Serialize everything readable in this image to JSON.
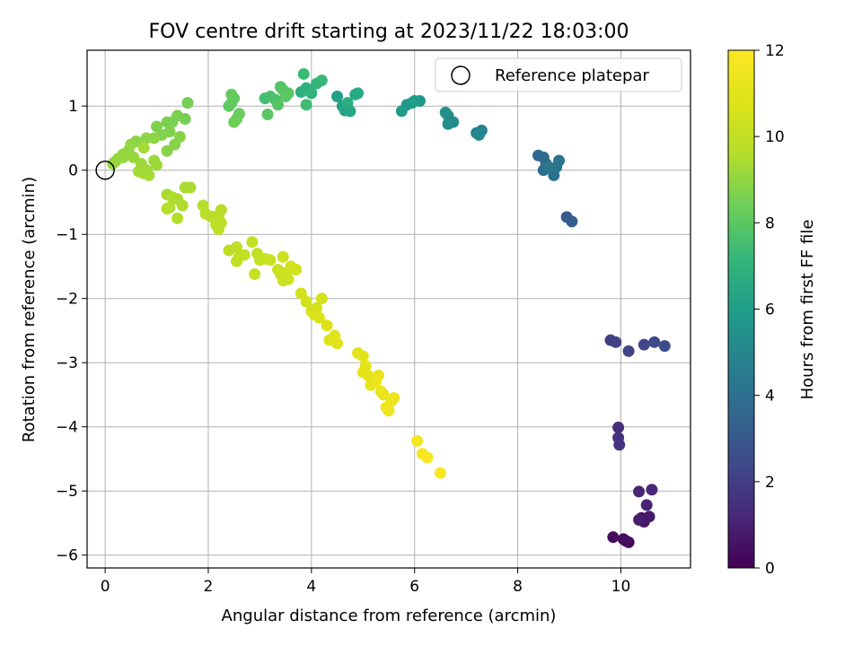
{
  "chart_data": {
    "type": "scatter",
    "title": "FOV centre drift starting at 2023/11/22 18:03:00",
    "xlabel": "Angular distance from reference (arcmin)",
    "ylabel": "Rotation from reference (arcmin)",
    "xlim": [
      -0.35,
      11.35
    ],
    "ylim": [
      -6.2,
      1.87
    ],
    "xticks": [
      0,
      2,
      4,
      6,
      8,
      10
    ],
    "yticks": [
      -6,
      -5,
      -4,
      -3,
      -2,
      -1,
      0,
      1
    ],
    "xtick_labels": [
      "0",
      "2",
      "4",
      "6",
      "8",
      "10"
    ],
    "ytick_labels": [
      "−6",
      "−5",
      "−4",
      "−3",
      "−2",
      "−1",
      "0",
      "1"
    ],
    "grid": true,
    "legend": {
      "position": "upper-right",
      "entries": [
        "Reference platepar"
      ]
    },
    "colorbar": {
      "label": "Hours from first FF file",
      "range": [
        0,
        12
      ],
      "ticks": [
        0,
        2,
        4,
        6,
        8,
        10,
        12
      ],
      "tick_labels": [
        "0",
        "2",
        "4",
        "6",
        "8",
        "10",
        "12"
      ],
      "colormap": "viridis"
    },
    "reference_point": {
      "x": 0,
      "y": 0
    },
    "points": [
      [
        10.15,
        -5.8,
        0.1
      ],
      [
        10.05,
        -5.75,
        0.2
      ],
      [
        9.85,
        -5.72,
        0.3
      ],
      [
        10.1,
        -5.78,
        0.4
      ],
      [
        10.4,
        -5.42,
        0.6
      ],
      [
        10.45,
        -5.48,
        0.7
      ],
      [
        10.55,
        -5.4,
        0.8
      ],
      [
        10.35,
        -5.45,
        0.9
      ],
      [
        10.5,
        -5.22,
        1.0
      ],
      [
        10.35,
        -5.01,
        1.1
      ],
      [
        10.6,
        -4.98,
        1.2
      ],
      [
        9.95,
        -4.01,
        1.4
      ],
      [
        9.95,
        -4.17,
        1.5
      ],
      [
        9.97,
        -4.28,
        1.6
      ],
      [
        9.8,
        -2.65,
        2.0
      ],
      [
        9.9,
        -2.68,
        2.1
      ],
      [
        10.15,
        -2.82,
        2.2
      ],
      [
        10.45,
        -2.72,
        2.3
      ],
      [
        10.65,
        -2.68,
        2.4
      ],
      [
        10.85,
        -2.74,
        2.5
      ],
      [
        8.95,
        -0.73,
        3.1
      ],
      [
        9.05,
        -0.8,
        3.2
      ],
      [
        8.4,
        0.23,
        3.6
      ],
      [
        8.5,
        0.2,
        3.7
      ],
      [
        8.55,
        0.1,
        3.8
      ],
      [
        8.5,
        0.0,
        3.9
      ],
      [
        8.7,
        -0.08,
        4.0
      ],
      [
        8.75,
        0.05,
        4.1
      ],
      [
        8.8,
        0.15,
        4.2
      ],
      [
        8.6,
        0.05,
        4.3
      ],
      [
        7.2,
        0.58,
        4.8
      ],
      [
        7.3,
        0.62,
        4.9
      ],
      [
        7.25,
        0.55,
        5.0
      ],
      [
        6.65,
        0.85,
        5.1
      ],
      [
        6.75,
        0.75,
        5.2
      ],
      [
        6.65,
        0.72,
        5.3
      ],
      [
        6.6,
        0.9,
        5.4
      ],
      [
        6.1,
        1.08,
        5.6
      ],
      [
        5.95,
        1.05,
        5.7
      ],
      [
        5.85,
        1.02,
        5.8
      ],
      [
        5.75,
        0.92,
        5.9
      ],
      [
        6.0,
        1.08,
        6.0
      ],
      [
        4.5,
        1.15,
        6.1
      ],
      [
        4.6,
        1.0,
        6.2
      ],
      [
        4.65,
        0.93,
        6.3
      ],
      [
        4.75,
        0.92,
        6.4
      ],
      [
        4.85,
        1.18,
        6.5
      ],
      [
        4.9,
        1.2,
        6.6
      ],
      [
        4.7,
        1.05,
        6.7
      ],
      [
        3.8,
        1.22,
        6.8
      ],
      [
        3.9,
        1.28,
        6.9
      ],
      [
        4.0,
        1.2,
        7.0
      ],
      [
        4.1,
        1.35,
        7.1
      ],
      [
        4.2,
        1.4,
        7.2
      ],
      [
        3.85,
        1.5,
        7.3
      ],
      [
        3.9,
        1.02,
        7.4
      ],
      [
        3.1,
        1.12,
        7.5
      ],
      [
        3.2,
        1.15,
        7.6
      ],
      [
        3.3,
        1.1,
        7.7
      ],
      [
        3.4,
        1.3,
        7.8
      ],
      [
        3.35,
        1.02,
        7.9
      ],
      [
        3.45,
        1.25,
        7.9
      ],
      [
        3.5,
        1.15,
        8.0
      ],
      [
        3.55,
        1.2,
        8.0
      ],
      [
        3.15,
        0.87,
        8.0
      ],
      [
        2.45,
        1.05,
        8.1
      ],
      [
        2.4,
        1.0,
        8.1
      ],
      [
        2.45,
        1.18,
        8.2
      ],
      [
        2.5,
        1.12,
        8.2
      ],
      [
        2.6,
        0.88,
        8.3
      ],
      [
        2.55,
        0.8,
        8.3
      ],
      [
        2.5,
        0.75,
        8.4
      ],
      [
        1.6,
        1.05,
        8.5
      ],
      [
        1.55,
        0.8,
        8.5
      ],
      [
        1.4,
        0.85,
        8.6
      ],
      [
        1.3,
        0.75,
        8.6
      ],
      [
        1.2,
        0.75,
        8.6
      ],
      [
        1.25,
        0.6,
        8.7
      ],
      [
        1.0,
        0.68,
        8.7
      ],
      [
        1.1,
        0.55,
        8.7
      ],
      [
        1.45,
        0.52,
        8.8
      ],
      [
        1.35,
        0.4,
        8.8
      ],
      [
        1.2,
        0.3,
        8.8
      ],
      [
        0.95,
        0.5,
        8.9
      ],
      [
        0.8,
        0.5,
        8.9
      ],
      [
        0.6,
        0.45,
        8.9
      ],
      [
        0.5,
        0.4,
        9.0
      ],
      [
        0.45,
        0.3,
        9.0
      ],
      [
        0.35,
        0.25,
        9.0
      ],
      [
        0.25,
        0.18,
        9.0
      ],
      [
        0.15,
        0.1,
        9.1
      ],
      [
        0.2,
        0.14,
        9.1
      ],
      [
        0.35,
        0.2,
        9.1
      ],
      [
        0.55,
        0.2,
        9.1
      ],
      [
        0.7,
        0.1,
        9.2
      ],
      [
        0.8,
        0.0,
        9.2
      ],
      [
        0.95,
        0.15,
        9.2
      ],
      [
        1.0,
        0.08,
        9.2
      ],
      [
        0.75,
        -0.05,
        9.3
      ],
      [
        0.85,
        -0.08,
        9.3
      ],
      [
        0.65,
        -0.02,
        9.3
      ],
      [
        0.75,
        0.35,
        9.3
      ],
      [
        1.65,
        -0.27,
        9.4
      ],
      [
        1.55,
        -0.27,
        9.4
      ],
      [
        1.2,
        -0.38,
        9.4
      ],
      [
        1.3,
        -0.42,
        9.5
      ],
      [
        1.4,
        -0.45,
        9.5
      ],
      [
        1.5,
        -0.55,
        9.5
      ],
      [
        1.25,
        -0.58,
        9.5
      ],
      [
        1.4,
        -0.75,
        9.6
      ],
      [
        1.2,
        -0.6,
        9.6
      ],
      [
        1.9,
        -0.55,
        9.6
      ],
      [
        1.95,
        -0.68,
        9.7
      ],
      [
        2.05,
        -0.72,
        9.7
      ],
      [
        2.2,
        -0.7,
        9.7
      ],
      [
        2.25,
        -0.62,
        9.7
      ],
      [
        2.15,
        -0.85,
        9.8
      ],
      [
        2.2,
        -0.92,
        9.8
      ],
      [
        2.25,
        -0.82,
        9.8
      ],
      [
        2.4,
        -1.25,
        9.9
      ],
      [
        2.55,
        -1.2,
        9.9
      ],
      [
        2.6,
        -1.35,
        9.9
      ],
      [
        2.7,
        -1.32,
        10.0
      ],
      [
        2.55,
        -1.42,
        10.0
      ],
      [
        2.85,
        -1.12,
        10.0
      ],
      [
        2.95,
        -1.3,
        10.0
      ],
      [
        2.9,
        -1.62,
        10.1
      ],
      [
        3.0,
        -1.4,
        10.1
      ],
      [
        3.1,
        -1.38,
        10.1
      ],
      [
        3.2,
        -1.4,
        10.2
      ],
      [
        3.35,
        -1.55,
        10.2
      ],
      [
        3.4,
        -1.62,
        10.2
      ],
      [
        3.45,
        -1.72,
        10.3
      ],
      [
        3.5,
        -1.6,
        10.3
      ],
      [
        3.55,
        -1.7,
        10.3
      ],
      [
        3.45,
        -1.35,
        10.3
      ],
      [
        3.6,
        -1.5,
        10.4
      ],
      [
        3.7,
        -1.55,
        10.4
      ],
      [
        3.8,
        -1.92,
        10.5
      ],
      [
        3.9,
        -2.05,
        10.5
      ],
      [
        4.0,
        -2.2,
        10.6
      ],
      [
        4.1,
        -2.15,
        10.6
      ],
      [
        4.2,
        -2.0,
        10.6
      ],
      [
        4.15,
        -2.3,
        10.7
      ],
      [
        4.05,
        -2.25,
        10.7
      ],
      [
        4.3,
        -2.42,
        10.8
      ],
      [
        4.35,
        -2.65,
        10.8
      ],
      [
        4.5,
        -2.7,
        10.9
      ],
      [
        4.45,
        -2.58,
        10.9
      ],
      [
        4.9,
        -2.85,
        11.0
      ],
      [
        5.0,
        -2.9,
        11.0
      ],
      [
        5.05,
        -3.05,
        11.1
      ],
      [
        5.1,
        -3.2,
        11.1
      ],
      [
        5.0,
        -3.15,
        11.1
      ],
      [
        5.15,
        -3.35,
        11.2
      ],
      [
        5.3,
        -3.2,
        11.2
      ],
      [
        5.25,
        -3.3,
        11.3
      ],
      [
        5.35,
        -3.45,
        11.3
      ],
      [
        5.4,
        -3.5,
        11.3
      ],
      [
        5.45,
        -3.7,
        11.4
      ],
      [
        5.55,
        -3.6,
        11.4
      ],
      [
        5.6,
        -3.55,
        11.4
      ],
      [
        5.5,
        -3.75,
        11.5
      ],
      [
        6.05,
        -4.22,
        11.6
      ],
      [
        6.15,
        -4.42,
        11.7
      ],
      [
        6.25,
        -4.48,
        11.8
      ],
      [
        6.5,
        -4.72,
        11.9
      ]
    ]
  }
}
